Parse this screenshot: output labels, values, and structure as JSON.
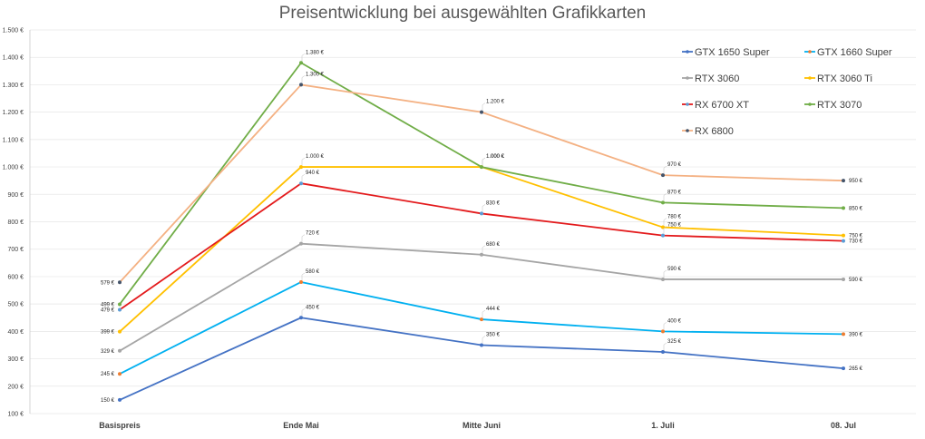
{
  "chart_data": {
    "type": "line",
    "title": "Preisentwicklung bei ausgewählten Grafikkarten",
    "xlabel": "",
    "ylabel": "",
    "categories": [
      "Basispreis",
      "Ende Mai",
      "Mitte Juni",
      "1. Juli",
      "08. Jul"
    ],
    "ylim": [
      100,
      1500
    ],
    "yticks": [
      100,
      200,
      300,
      400,
      500,
      600,
      700,
      800,
      900,
      1000,
      1100,
      1200,
      1300,
      1400,
      1500
    ],
    "ytick_labels": [
      "100 €",
      "200 €",
      "300 €",
      "400 €",
      "500 €",
      "600 €",
      "700 €",
      "800 €",
      "900 €",
      "1.000 €",
      "1.100 €",
      "1.200 €",
      "1.300 €",
      "1.400 €",
      "1.500 €"
    ],
    "grid": true,
    "legend_position": "top-right",
    "series": [
      {
        "name": "GTX 1650 Super",
        "color": "#4472C4",
        "marker": "#4472C4",
        "values": [
          150,
          450,
          350,
          325,
          265
        ],
        "labels": [
          "150 €",
          "450 €",
          "350 €",
          "325 €",
          "265 €"
        ]
      },
      {
        "name": "GTX 1660 Super",
        "color": "#00B0F0",
        "marker": "#ED7D31",
        "values": [
          245,
          580,
          444,
          400,
          390
        ],
        "labels": [
          "245 €",
          "580 €",
          "444 €",
          "400 €",
          "390 €"
        ]
      },
      {
        "name": "RTX 3060",
        "color": "#A5A5A5",
        "marker": "#A5A5A5",
        "values": [
          329,
          720,
          680,
          590,
          590
        ],
        "labels": [
          "329 €",
          "720 €",
          "680 €",
          "590 €",
          "590 €"
        ]
      },
      {
        "name": "RTX 3060 Ti",
        "color": "#FFC000",
        "marker": "#FFC000",
        "values": [
          399,
          1000,
          1000,
          780,
          750
        ],
        "labels": [
          "399 €",
          "1.000 €",
          "1.000 €",
          "780 €",
          "750 €"
        ]
      },
      {
        "name": "RX 6700 XT",
        "color": "#E31A1C",
        "marker": "#5B9BD5",
        "values": [
          479,
          940,
          830,
          750,
          730
        ],
        "labels": [
          "479 €",
          "940 €",
          "830 €",
          "750 €",
          "730 €"
        ]
      },
      {
        "name": "RTX 3070",
        "color": "#70AD47",
        "marker": "#70AD47",
        "values": [
          499,
          1380,
          1000,
          870,
          850
        ],
        "labels": [
          "499 €",
          "1.380 €",
          "1.000 €",
          "870 €",
          "850 €"
        ]
      },
      {
        "name": "RX 6800",
        "color": "#F4B183",
        "marker": "#44546A",
        "values": [
          579,
          1300,
          1200,
          970,
          950
        ],
        "labels": [
          "579 €",
          "1.300 €",
          "1.200 €",
          "970 €",
          "950 €"
        ]
      }
    ]
  }
}
